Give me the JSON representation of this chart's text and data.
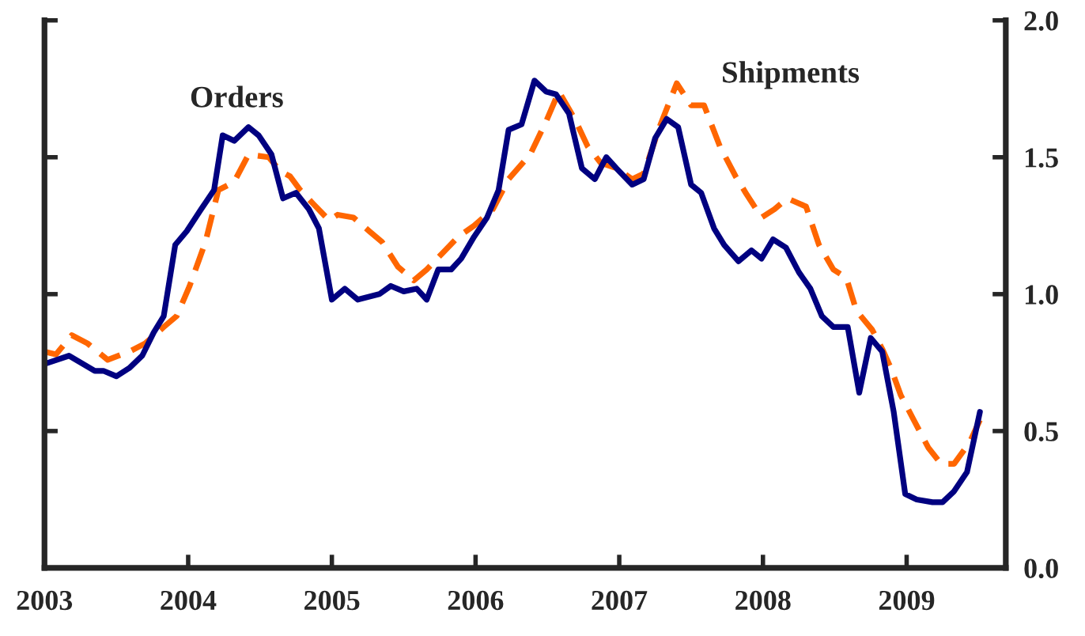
{
  "chart_data": {
    "type": "line",
    "xlim": [
      2003,
      2009.69
    ],
    "xticks": [
      2003,
      2004,
      2005,
      2006,
      2007,
      2008,
      2009
    ],
    "ylim": [
      0,
      2
    ],
    "yticks": [
      {
        "value": 0,
        "label": "0.0"
      },
      {
        "value": 0.5,
        "label": "0.5"
      },
      {
        "value": 1,
        "label": "1.0"
      },
      {
        "value": 1.5,
        "label": "1.5"
      },
      {
        "value": 2,
        "label": "2.0"
      }
    ],
    "grid": false,
    "legend": false,
    "series": [
      {
        "name": "Shipments",
        "color": "#ff6600",
        "line_style": "dashed",
        "x": [
          2003.0,
          2003.08,
          2003.19,
          2003.3,
          2003.44,
          2003.59,
          2003.7,
          2003.83,
          2003.92,
          2004.01,
          2004.12,
          2004.21,
          2004.32,
          2004.42,
          2004.56,
          2004.64,
          2004.71,
          2004.78,
          2004.87,
          2004.98,
          2005.04,
          2005.15,
          2005.26,
          2005.35,
          2005.46,
          2005.57,
          2005.66,
          2005.77,
          2005.88,
          2005.99,
          2006.12,
          2006.23,
          2006.38,
          2006.49,
          2006.58,
          2006.69,
          2006.78,
          2006.87,
          2006.98,
          2007.09,
          2007.17,
          2007.28,
          2007.4,
          2007.5,
          2007.59,
          2007.7,
          2007.81,
          2007.88,
          2007.99,
          2008.08,
          2008.17,
          2008.3,
          2008.39,
          2008.49,
          2008.58,
          2008.65,
          2008.76,
          2008.83,
          2008.89,
          2008.96,
          2009.05,
          2009.15,
          2009.24,
          2009.33,
          2009.44,
          2009.51
        ],
        "values": [
          0.79,
          0.78,
          0.85,
          0.82,
          0.76,
          0.79,
          0.82,
          0.88,
          0.92,
          1.03,
          1.19,
          1.38,
          1.41,
          1.51,
          1.5,
          1.45,
          1.43,
          1.38,
          1.33,
          1.27,
          1.29,
          1.28,
          1.23,
          1.19,
          1.1,
          1.05,
          1.09,
          1.15,
          1.21,
          1.25,
          1.31,
          1.42,
          1.51,
          1.63,
          1.74,
          1.64,
          1.54,
          1.48,
          1.46,
          1.42,
          1.44,
          1.61,
          1.77,
          1.69,
          1.69,
          1.54,
          1.43,
          1.37,
          1.28,
          1.31,
          1.35,
          1.32,
          1.18,
          1.09,
          1.06,
          0.94,
          0.87,
          0.8,
          0.73,
          0.63,
          0.54,
          0.44,
          0.38,
          0.38,
          0.46,
          0.54
        ]
      },
      {
        "name": "Orders",
        "color": "#000080",
        "line_style": "solid",
        "x": [
          2003.0,
          2003.17,
          2003.35,
          2003.41,
          2003.5,
          2003.59,
          2003.68,
          2003.76,
          2003.83,
          2003.91,
          2003.99,
          2004.09,
          2004.18,
          2004.24,
          2004.32,
          2004.42,
          2004.49,
          2004.58,
          2004.66,
          2004.75,
          2004.84,
          2004.91,
          2005.0,
          2005.09,
          2005.18,
          2005.33,
          2005.41,
          2005.5,
          2005.59,
          2005.66,
          2005.74,
          2005.83,
          2005.9,
          2005.99,
          2006.08,
          2006.16,
          2006.23,
          2006.32,
          2006.41,
          2006.49,
          2006.56,
          2006.65,
          2006.74,
          2006.83,
          2006.91,
          2006.98,
          2007.09,
          2007.17,
          2007.25,
          2007.33,
          2007.41,
          2007.5,
          2007.57,
          2007.66,
          2007.73,
          2007.83,
          2007.92,
          2007.99,
          2008.07,
          2008.16,
          2008.25,
          2008.33,
          2008.41,
          2008.49,
          2008.59,
          2008.67,
          2008.75,
          2008.83,
          2008.91,
          2008.99,
          2009.07,
          2009.18,
          2009.25,
          2009.33,
          2009.42,
          2009.51
        ],
        "values": [
          0.745,
          0.775,
          0.72,
          0.72,
          0.7,
          0.73,
          0.775,
          0.86,
          0.92,
          1.18,
          1.23,
          1.31,
          1.38,
          1.58,
          1.56,
          1.61,
          1.58,
          1.51,
          1.35,
          1.37,
          1.31,
          1.24,
          0.98,
          1.02,
          0.98,
          1.0,
          1.03,
          1.01,
          1.02,
          0.98,
          1.09,
          1.09,
          1.13,
          1.21,
          1.28,
          1.38,
          1.6,
          1.62,
          1.78,
          1.74,
          1.73,
          1.66,
          1.46,
          1.42,
          1.5,
          1.46,
          1.4,
          1.42,
          1.57,
          1.64,
          1.61,
          1.4,
          1.37,
          1.24,
          1.18,
          1.12,
          1.16,
          1.13,
          1.2,
          1.17,
          1.08,
          1.02,
          0.92,
          0.88,
          0.88,
          0.64,
          0.84,
          0.79,
          0.57,
          0.27,
          0.25,
          0.24,
          0.24,
          0.28,
          0.35,
          0.57
        ]
      }
    ]
  }
}
